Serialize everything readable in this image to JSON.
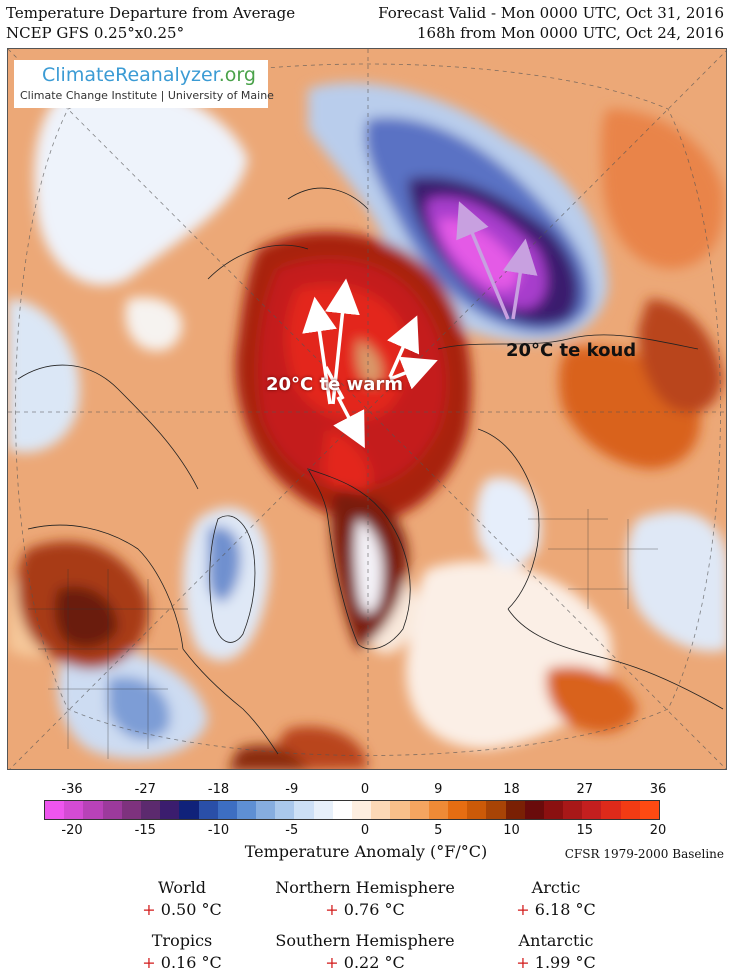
{
  "header": {
    "title": "Temperature Departure from Average",
    "model": "NCEP GFS 0.25°x0.25°",
    "valid": "Forecast Valid - Mon 0000 UTC, Oct 31, 2016",
    "lead": "168h from Mon 0000 UTC, Oct 24, 2016"
  },
  "logo": {
    "name_part1": "Climate",
    "name_part2": "Reanalyzer",
    "name_part3": ".org",
    "subtitle": "Climate Change Institute | University of Maine"
  },
  "annotations": {
    "warm": "20°C te warm",
    "cold": "20°C te koud"
  },
  "colorbar": {
    "f_ticks": [
      "-36",
      "-27",
      "-18",
      "-9",
      "0",
      "9",
      "18",
      "27",
      "36"
    ],
    "c_ticks": [
      "-20",
      "-15",
      "-10",
      "-5",
      "0",
      "5",
      "10",
      "15",
      "20"
    ],
    "title": "Temperature Anomaly (°F/°C)",
    "baseline": "CFSR 1979-2000 Baseline",
    "colors": [
      "#ee55ee",
      "#d44bd4",
      "#b842b8",
      "#9c3a9c",
      "#7e327e",
      "#5c2a6e",
      "#3b1d6e",
      "#10227a",
      "#2a4fa8",
      "#3d6ec2",
      "#5e8fd4",
      "#86ade0",
      "#aac8ec",
      "#cde0f6",
      "#e7f0fa",
      "#ffffff",
      "#fdeee0",
      "#fbd8b6",
      "#f9c08a",
      "#f5a560",
      "#ef8a36",
      "#e66d12",
      "#cc5a08",
      "#a84406",
      "#7a2004",
      "#6a0b0b",
      "#8b1010",
      "#a81818",
      "#c41f1f",
      "#de2a1a",
      "#f23b14",
      "#ff4a12"
    ]
  },
  "stats": [
    {
      "name": "World",
      "sign": "+",
      "value": "0.50 °C"
    },
    {
      "name": "Northern Hemisphere",
      "sign": "+",
      "value": "0.76 °C"
    },
    {
      "name": "Arctic",
      "sign": "+",
      "value": "6.18 °C"
    },
    {
      "name": "Tropics",
      "sign": "+",
      "value": "0.16 °C"
    },
    {
      "name": "Southern Hemisphere",
      "sign": "+",
      "value": "0.22 °C"
    },
    {
      "name": "Antarctic",
      "sign": "+",
      "value": "1.99 °C"
    }
  ]
}
